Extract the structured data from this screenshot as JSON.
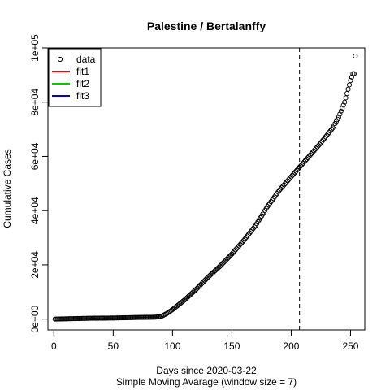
{
  "chart_data": {
    "type": "scatter",
    "title": "Palestine / Bertalanffy",
    "xlabel": "Days since 2020-03-22",
    "subtitle": "Simple Moving Avarage (window size = 7)",
    "ylabel": "Cumulative Cases",
    "xlim": [
      -5,
      262
    ],
    "ylim": [
      -4000,
      100000
    ],
    "x_ticks": [
      0,
      50,
      100,
      150,
      200,
      250
    ],
    "x_tick_labels": [
      "0",
      "50",
      "100",
      "150",
      "200",
      "250"
    ],
    "y_ticks": [
      0,
      20000,
      40000,
      60000,
      80000,
      100000
    ],
    "y_tick_labels": [
      "0e+00",
      "2e+04",
      "4e+04",
      "6e+04",
      "8e+04",
      "1e+05"
    ],
    "vline_x": 207,
    "vline_style": "dashed",
    "grid": false,
    "legend": {
      "position": "top-left",
      "entries": [
        {
          "label": "data",
          "symbol": "circle",
          "color": "#000000"
        },
        {
          "label": "fit1",
          "symbol": "line",
          "color": "#ff0000"
        },
        {
          "label": "fit2",
          "symbol": "line",
          "color": "#00cd00"
        },
        {
          "label": "fit3",
          "symbol": "line",
          "color": "#0000cd"
        }
      ]
    },
    "series": [
      {
        "marker": "open-circle",
        "color": "#000000",
        "x_start": 1,
        "x_end": 254,
        "anchors_x": [
          1,
          15,
          30,
          50,
          70,
          85,
          90,
          95,
          100,
          110,
          120,
          130,
          140,
          150,
          160,
          170,
          180,
          190,
          200,
          207,
          215,
          225,
          235,
          240,
          245,
          250,
          252,
          253,
          254
        ],
        "anchors_y": [
          0,
          150,
          300,
          400,
          600,
          700,
          900,
          2000,
          3500,
          7000,
          11000,
          15500,
          19500,
          24000,
          29000,
          34500,
          41500,
          47500,
          52500,
          56000,
          60000,
          65000,
          70500,
          74500,
          80000,
          88000,
          90500,
          90500,
          97000
        ]
      }
    ]
  }
}
